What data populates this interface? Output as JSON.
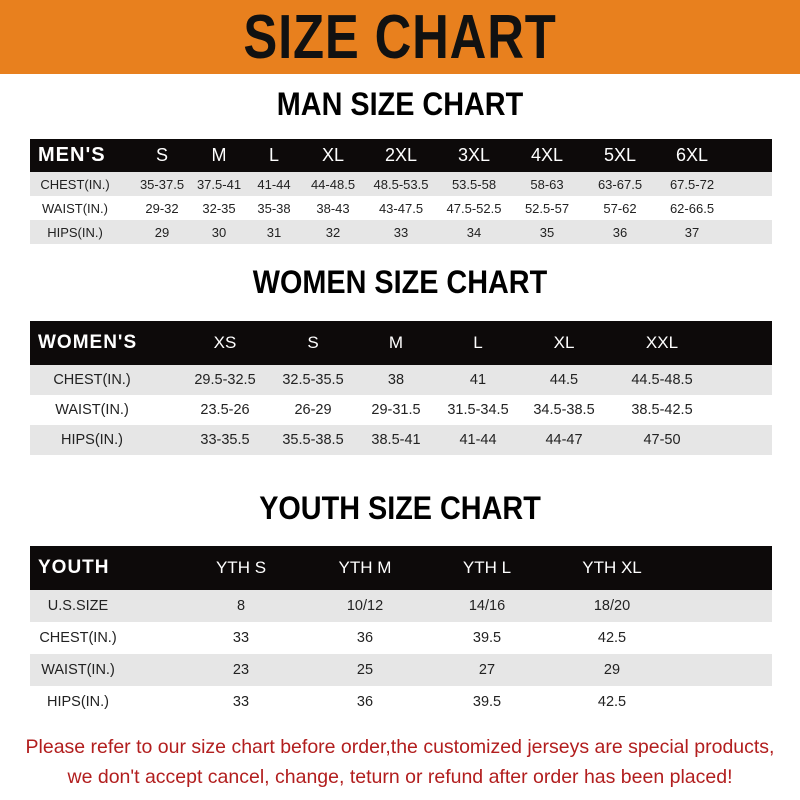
{
  "banner": {
    "title": "SIZE CHART",
    "color": "#e8801e"
  },
  "men": {
    "title": "MAN SIZE CHART",
    "header": [
      "MEN'S",
      "S",
      "M",
      "L",
      "XL",
      "2XL",
      "3XL",
      "4XL",
      "5XL",
      "6XL"
    ],
    "rows": [
      [
        "CHEST(IN.)",
        "35-37.5",
        "37.5-41",
        "41-44",
        "44-48.5",
        "48.5-53.5",
        "53.5-58",
        "58-63",
        "63-67.5",
        "67.5-72"
      ],
      [
        "WAIST(IN.)",
        "29-32",
        "32-35",
        "35-38",
        "38-43",
        "43-47.5",
        "47.5-52.5",
        "52.5-57",
        "57-62",
        "62-66.5"
      ],
      [
        "HIPS(IN.)",
        "29",
        "30",
        "31",
        "32",
        "33",
        "34",
        "35",
        "36",
        "37"
      ]
    ]
  },
  "women": {
    "title": "WOMEN SIZE CHART",
    "header": [
      "WOMEN'S",
      "XS",
      "S",
      "M",
      "L",
      "XL",
      "XXL"
    ],
    "rows": [
      [
        "CHEST(IN.)",
        "29.5-32.5",
        "32.5-35.5",
        "38",
        "41",
        "44.5",
        "44.5-48.5"
      ],
      [
        "WAIST(IN.)",
        "23.5-26",
        "26-29",
        "29-31.5",
        "31.5-34.5",
        "34.5-38.5",
        "38.5-42.5"
      ],
      [
        "HIPS(IN.)",
        "33-35.5",
        "35.5-38.5",
        "38.5-41",
        "41-44",
        "44-47",
        "47-50"
      ]
    ]
  },
  "youth": {
    "title": "YOUTH SIZE CHART",
    "header": [
      "YOUTH",
      "YTH S",
      "YTH M",
      "YTH L",
      "YTH XL"
    ],
    "rows": [
      [
        "U.S.SIZE",
        "8",
        "10/12",
        "14/16",
        "18/20"
      ],
      [
        "CHEST(IN.)",
        "33",
        "36",
        "39.5",
        "42.5"
      ],
      [
        "WAIST(IN.)",
        "23",
        "25",
        "27",
        "29"
      ],
      [
        "HIPS(IN.)",
        "33",
        "36",
        "39.5",
        "42.5"
      ]
    ]
  },
  "footer": {
    "line1": "Please refer to our size chart before order,the customized jerseys are special products,",
    "line2": "we don't accept cancel, change, teturn or refund after order has been placed!",
    "color": "#b21e1e"
  }
}
